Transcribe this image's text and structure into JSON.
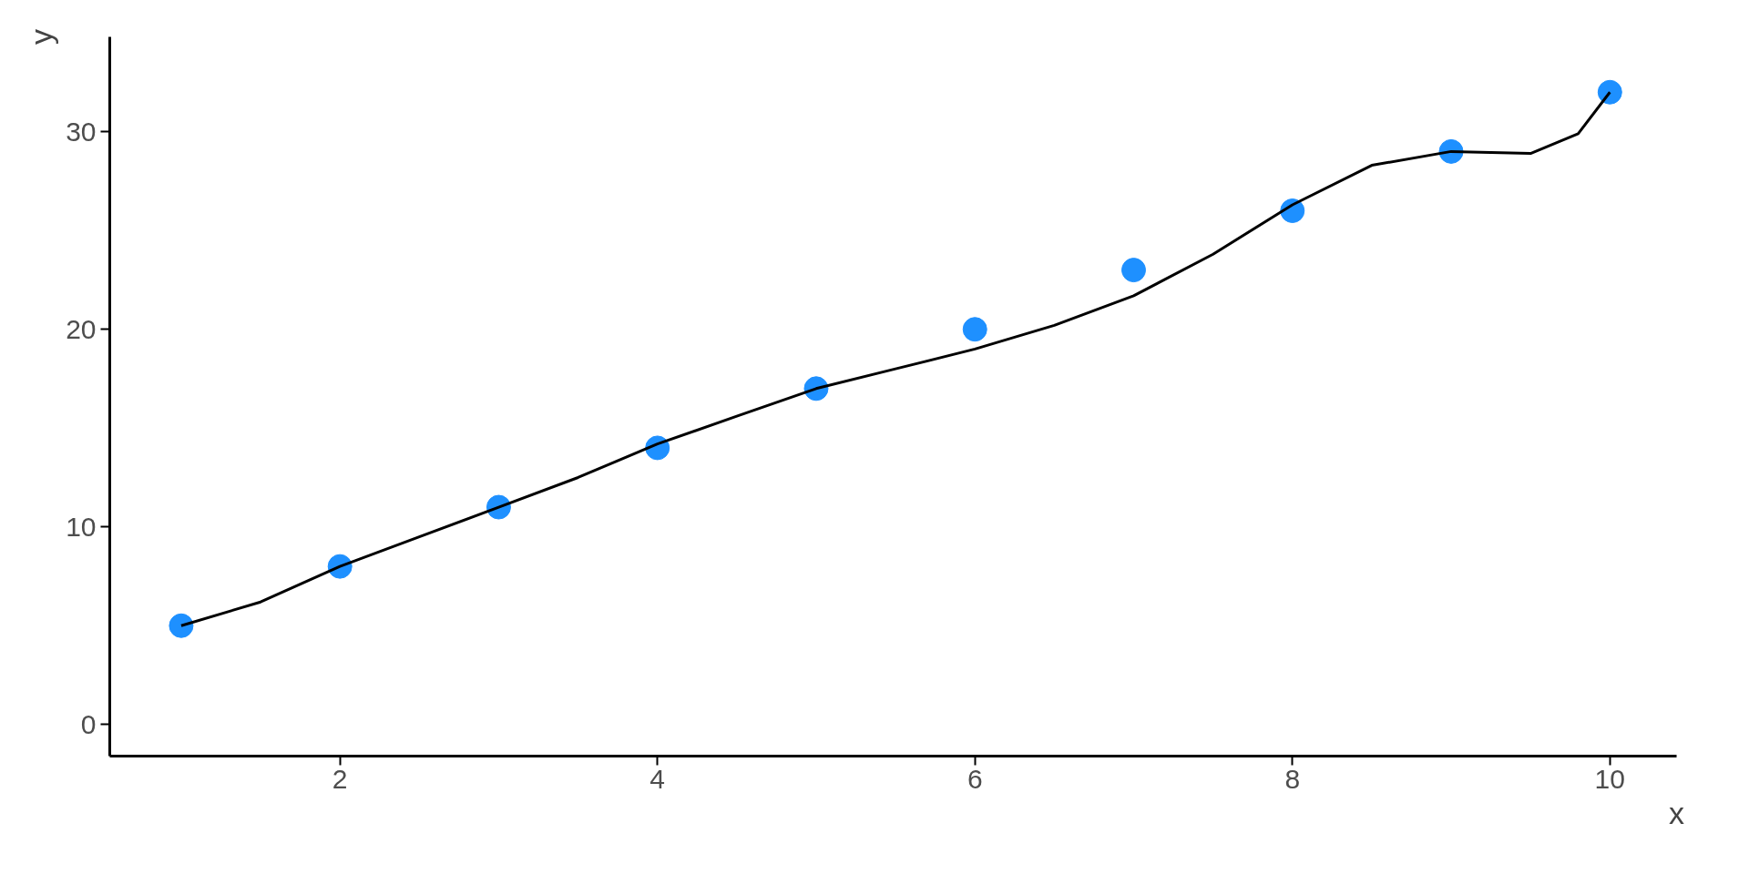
{
  "chart_data": {
    "type": "scatter",
    "xlabel": "x",
    "ylabel": "y",
    "xlim": [
      0.55,
      10.42
    ],
    "ylim": [
      -1.6,
      34.8
    ],
    "xticks": [
      2,
      4,
      6,
      8,
      10
    ],
    "yticks": [
      0,
      10,
      20,
      30
    ],
    "grid": false,
    "series": [
      {
        "color": "#1e90ff",
        "marker": "circle",
        "x": [
          1,
          2,
          3,
          4,
          5,
          6,
          7,
          8,
          9,
          10
        ],
        "values": [
          5,
          8,
          11,
          14,
          17,
          20,
          23,
          26,
          29,
          32
        ]
      },
      {
        "type": "line",
        "color": "#000000",
        "marker": "none",
        "x": [
          1,
          1.5,
          2,
          2.5,
          3,
          3.5,
          4,
          4.5,
          5,
          5.5,
          6,
          6.5,
          7,
          7.5,
          8,
          8.5,
          9,
          9.5,
          9.8,
          10
        ],
        "values": [
          5,
          6.2,
          8,
          9.5,
          11,
          12.5,
          14.2,
          15.6,
          17,
          18,
          19,
          20.2,
          21.7,
          23.8,
          26.3,
          28.3,
          29,
          28.9,
          29.9,
          32
        ]
      }
    ]
  }
}
